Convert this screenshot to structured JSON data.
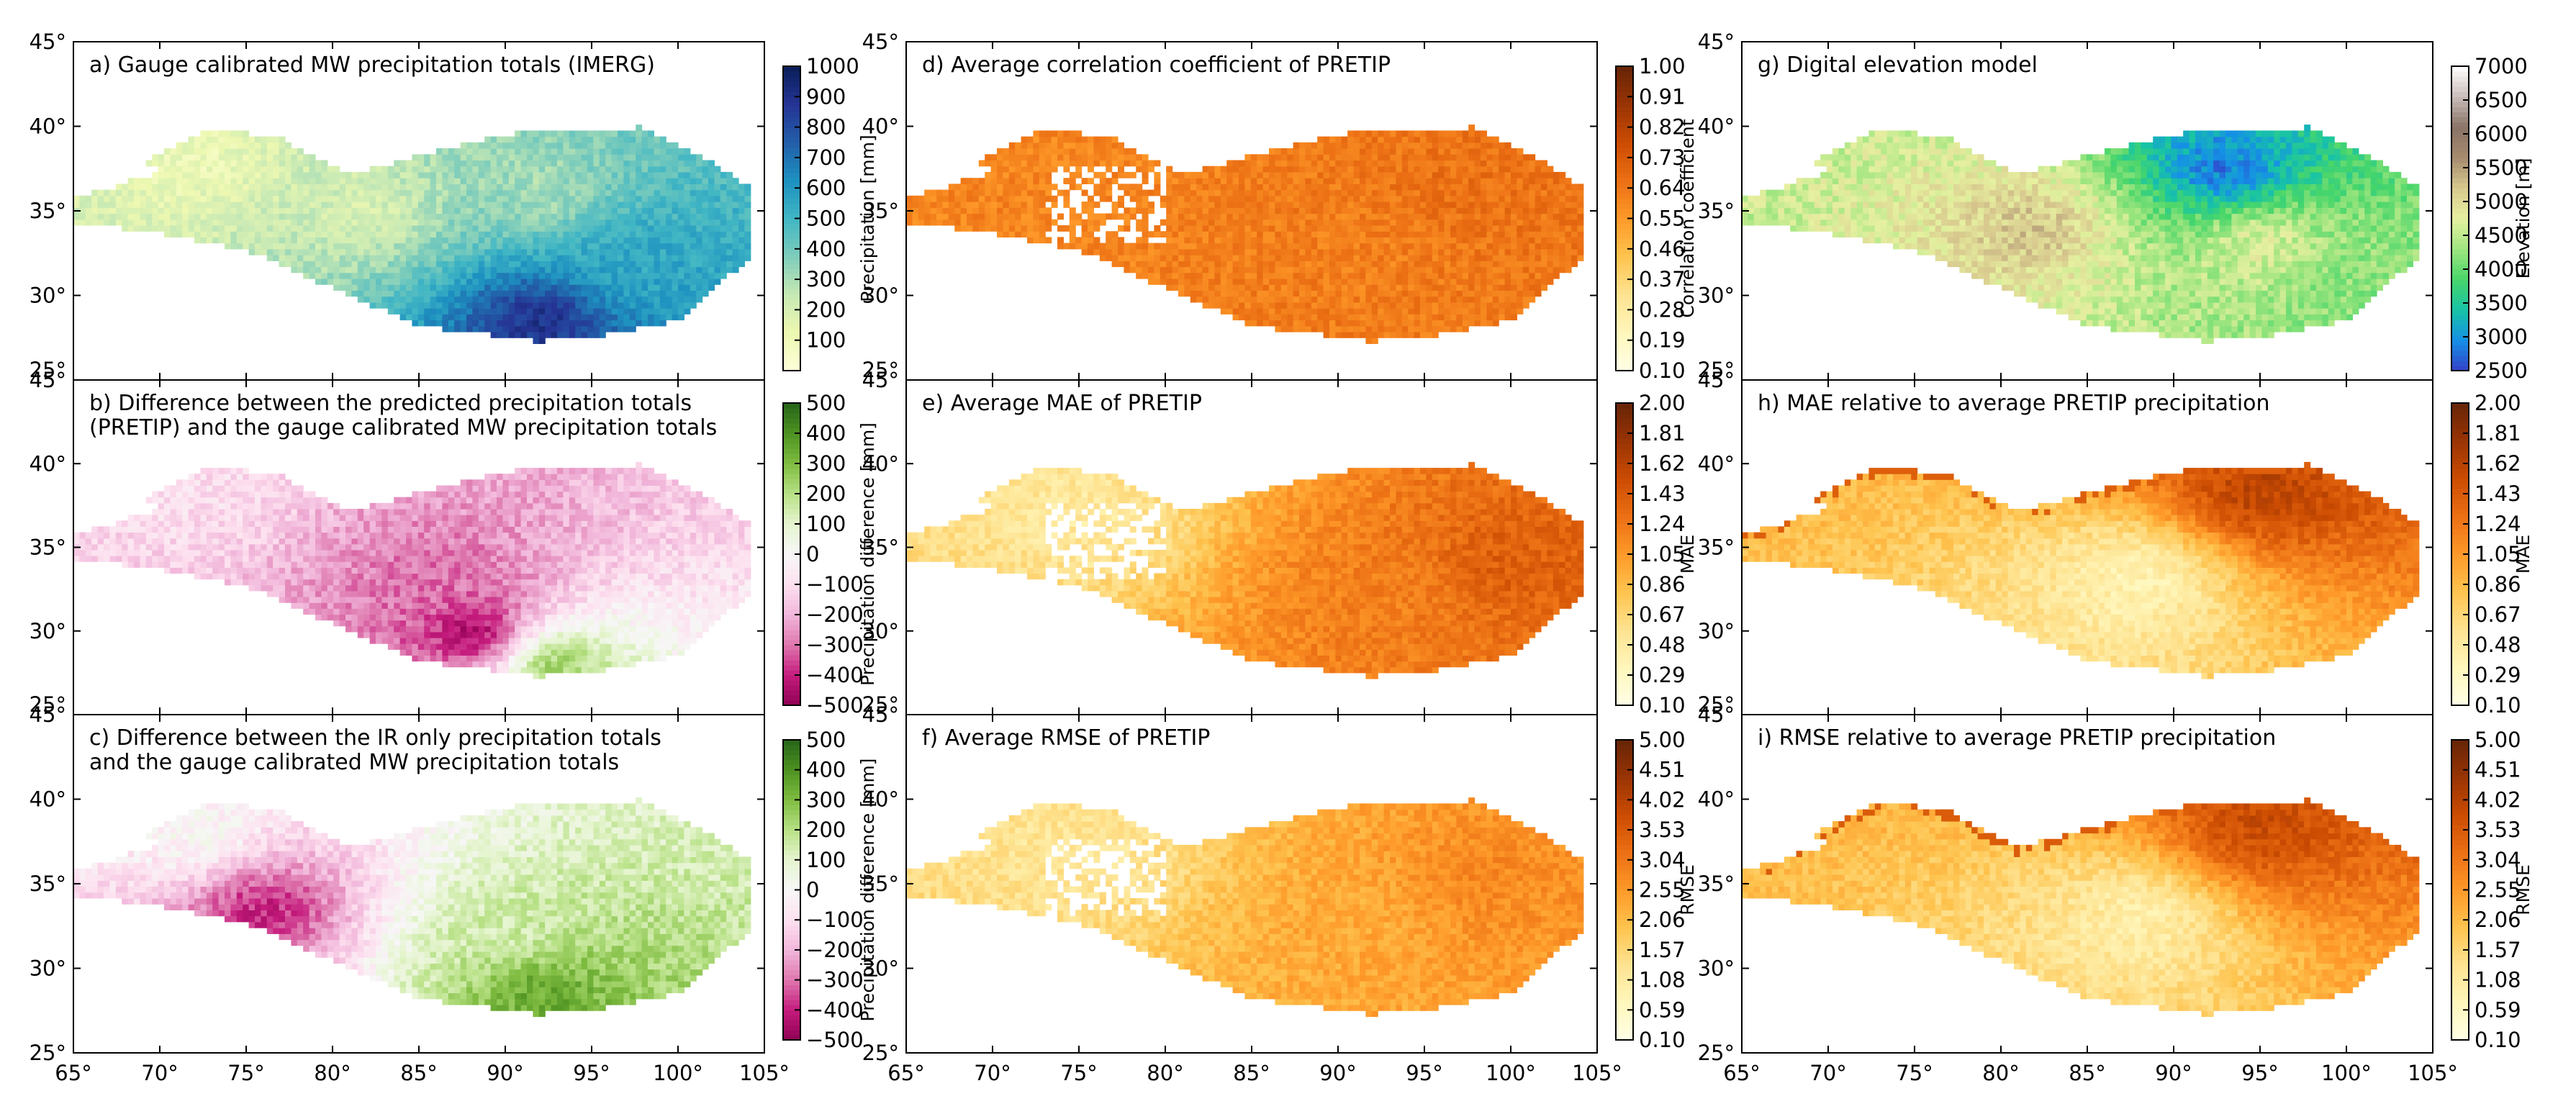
{
  "chart_data": {
    "type": "heatmap",
    "x_axis": {
      "range": [
        65,
        105
      ],
      "ticks": [
        65,
        70,
        75,
        80,
        85,
        90,
        95,
        100,
        105
      ],
      "tick_labels": [
        "65°",
        "70°",
        "75°",
        "80°",
        "85°",
        "90°",
        "95°",
        "100°",
        "105°"
      ]
    },
    "y_axis": {
      "range": [
        25,
        45
      ],
      "ticks": [
        25,
        30,
        35,
        40,
        45
      ],
      "tick_labels": [
        "25°",
        "30°",
        "35°",
        "40°",
        "45°"
      ]
    },
    "panels": [
      {
        "id": "a",
        "title": [
          "a) Gauge calibrated MW precipitation totals (IMERG)"
        ],
        "colormap": "YlGnBu",
        "colors": [
          "#ffffd9",
          "#edf8b1",
          "#c7e9b4",
          "#7fcdbb",
          "#41b6c4",
          "#1d91c0",
          "#225ea8",
          "#253494",
          "#081d58"
        ],
        "colorbar": {
          "label": "Precipitation [mm]",
          "range": [
            0,
            1000
          ],
          "ticks": [
            100,
            200,
            300,
            400,
            500,
            600,
            700,
            800,
            900,
            1000
          ],
          "tick_labels": [
            "100",
            "200",
            "300",
            "400",
            "500",
            "600",
            "700",
            "800",
            "900",
            "1000"
          ]
        },
        "regions": [
          {
            "lon": 72,
            "lat": 38.0,
            "value": 120
          },
          {
            "lon": 82,
            "lat": 35.0,
            "value": 200
          },
          {
            "lon": 92,
            "lat": 36.0,
            "value": 300
          },
          {
            "lon": 97,
            "lat": 32.0,
            "value": 550
          },
          {
            "lon": 92,
            "lat": 28.5,
            "value": 900
          }
        ]
      },
      {
        "id": "b",
        "title": [
          "b) Difference between the predicted precipitation totals",
          "(PRETIP) and the gauge calibrated MW precipitation totals"
        ],
        "colormap": "PiYG",
        "colors": [
          "#8e0152",
          "#c51b7d",
          "#de77ae",
          "#f1b6da",
          "#fde0ef",
          "#f7f7f7",
          "#e6f5d0",
          "#b8e186",
          "#7fbc41",
          "#4d9221",
          "#276419"
        ],
        "colorbar": {
          "label": "Precipitation difference [mm]",
          "range": [
            -500,
            500
          ],
          "ticks": [
            -500,
            -400,
            -300,
            -200,
            -100,
            0,
            100,
            200,
            300,
            400,
            500
          ],
          "tick_labels": [
            "−500",
            "−400",
            "−300",
            "−200",
            "−100",
            "0",
            "100",
            "200",
            "300",
            "400",
            "500"
          ]
        },
        "regions": [
          {
            "lon": 72,
            "lat": 38.0,
            "value": -100
          },
          {
            "lon": 86,
            "lat": 33.0,
            "value": -300
          },
          {
            "lon": 88,
            "lat": 30.0,
            "value": -450
          },
          {
            "lon": 93,
            "lat": 28.0,
            "value": 250
          }
        ]
      },
      {
        "id": "c",
        "title": [
          "c) Difference between the IR only precipitation totals",
          "and the gauge calibrated MW precipitation totals"
        ],
        "colormap": "PiYG",
        "colors": [
          "#8e0152",
          "#c51b7d",
          "#de77ae",
          "#f1b6da",
          "#fde0ef",
          "#f7f7f7",
          "#e6f5d0",
          "#b8e186",
          "#7fbc41",
          "#4d9221",
          "#276419"
        ],
        "colorbar": {
          "label": "Precipitation difference [mm]",
          "range": [
            -500,
            500
          ],
          "ticks": [
            -500,
            -400,
            -300,
            -200,
            -100,
            0,
            100,
            200,
            300,
            400,
            500
          ],
          "tick_labels": [
            "−500",
            "−400",
            "−300",
            "−200",
            "−100",
            "0",
            "100",
            "200",
            "300",
            "400",
            "500"
          ]
        },
        "regions": [
          {
            "lon": 72,
            "lat": 38.0,
            "value": 0
          },
          {
            "lon": 90,
            "lat": 32.0,
            "value": 150
          },
          {
            "lon": 92,
            "lat": 28.5,
            "value": 350
          },
          {
            "lon": 76,
            "lat": 33.5,
            "value": -400
          }
        ]
      },
      {
        "id": "d",
        "title": [
          "d) Average correlation coefficient of PRETIP"
        ],
        "colormap": "YlOrBr",
        "colors": [
          "#ffffe5",
          "#fff7bc",
          "#fee391",
          "#fec44f",
          "#fe9929",
          "#ec7014",
          "#cc4c02",
          "#993404",
          "#662506"
        ],
        "colorbar": {
          "label": "Correlation coefficient",
          "range": [
            0.1,
            1.0
          ],
          "ticks": [
            0.1,
            0.19,
            0.28,
            0.37,
            0.46,
            0.55,
            0.64,
            0.73,
            0.82,
            0.91,
            1.0
          ],
          "tick_labels": [
            "0.10",
            "0.19",
            "0.28",
            "0.37",
            "0.46",
            "0.55",
            "0.64",
            "0.73",
            "0.82",
            "0.91",
            "1.00"
          ]
        },
        "regions": [
          {
            "lon": 75,
            "lat": 37.0,
            "value": 0.6
          },
          {
            "lon": 92,
            "lat": 33.0,
            "value": 0.62
          },
          {
            "lon": 97,
            "lat": 36.0,
            "value": 0.66
          }
        ]
      },
      {
        "id": "e",
        "title": [
          "e) Average MAE of PRETIP"
        ],
        "colormap": "YlOrBr",
        "colors": [
          "#ffffe5",
          "#fff7bc",
          "#fee391",
          "#fec44f",
          "#fe9929",
          "#ec7014",
          "#cc4c02",
          "#993404",
          "#662506"
        ],
        "colorbar": {
          "label": "MAE",
          "range": [
            0.1,
            2.0
          ],
          "ticks": [
            0.1,
            0.29,
            0.48,
            0.67,
            0.86,
            1.05,
            1.24,
            1.43,
            1.62,
            1.81,
            2.0
          ],
          "tick_labels": [
            "0.10",
            "0.29",
            "0.48",
            "0.67",
            "0.86",
            "1.05",
            "1.24",
            "1.43",
            "1.62",
            "1.81",
            "2.00"
          ]
        },
        "regions": [
          {
            "lon": 75,
            "lat": 37.0,
            "value": 0.5
          },
          {
            "lon": 93,
            "lat": 32.0,
            "value": 1.2
          },
          {
            "lon": 100,
            "lat": 34.0,
            "value": 1.4
          }
        ]
      },
      {
        "id": "f",
        "title": [
          "f) Average RMSE of PRETIP"
        ],
        "colormap": "YlOrBr",
        "colors": [
          "#ffffe5",
          "#fff7bc",
          "#fee391",
          "#fec44f",
          "#fe9929",
          "#ec7014",
          "#cc4c02",
          "#993404",
          "#662506"
        ],
        "colorbar": {
          "label": "RMSE",
          "range": [
            0.1,
            5.0
          ],
          "ticks": [
            0.1,
            0.59,
            1.08,
            1.57,
            2.06,
            2.55,
            3.04,
            3.53,
            4.02,
            4.51,
            5.0
          ],
          "tick_labels": [
            "0.10",
            "0.59",
            "1.08",
            "1.57",
            "2.06",
            "2.55",
            "3.04",
            "3.53",
            "4.02",
            "4.51",
            "5.00"
          ]
        },
        "regions": [
          {
            "lon": 75,
            "lat": 37.0,
            "value": 1.2
          },
          {
            "lon": 92,
            "lat": 33.0,
            "value": 2.3
          },
          {
            "lon": 98,
            "lat": 35.0,
            "value": 2.8
          }
        ]
      },
      {
        "id": "g",
        "title": [
          "g) Digital elevation model"
        ],
        "colormap": "terrain",
        "colors": [
          "#3340c9",
          "#1590e6",
          "#18c3a6",
          "#48d66a",
          "#9ee57f",
          "#e6f0a0",
          "#d8c98e",
          "#a68b6e",
          "#8a7266",
          "#c9bcba",
          "#ffffff"
        ],
        "colorbar": {
          "label": "Elevation [m]",
          "range": [
            2500,
            7000
          ],
          "ticks": [
            2500,
            3000,
            3500,
            4000,
            4500,
            5000,
            5500,
            6000,
            6500,
            7000
          ],
          "tick_labels": [
            "2500",
            "3000",
            "3500",
            "4000",
            "4500",
            "5000",
            "5500",
            "6000",
            "6500",
            "7000"
          ]
        },
        "regions": [
          {
            "lon": 93,
            "lat": 37.5,
            "value": 2800
          },
          {
            "lon": 82,
            "lat": 34.0,
            "value": 5200
          },
          {
            "lon": 95,
            "lat": 33.0,
            "value": 4700
          },
          {
            "lon": 100,
            "lat": 30.0,
            "value": 4200
          }
        ]
      },
      {
        "id": "h",
        "title": [
          "h) MAE relative to average PRETIP precipitation"
        ],
        "colormap": "YlOrBr",
        "colors": [
          "#ffffe5",
          "#fff7bc",
          "#fee391",
          "#fec44f",
          "#fe9929",
          "#ec7014",
          "#cc4c02",
          "#993404",
          "#662506"
        ],
        "colorbar": {
          "label": "MAE",
          "range": [
            0.1,
            2.0
          ],
          "ticks": [
            0.1,
            0.29,
            0.48,
            0.67,
            0.86,
            1.05,
            1.24,
            1.43,
            1.62,
            1.81,
            2.0
          ],
          "tick_labels": [
            "0.10",
            "0.29",
            "0.48",
            "0.67",
            "0.86",
            "1.05",
            "1.24",
            "1.43",
            "1.62",
            "1.81",
            "2.00"
          ]
        },
        "regions": [
          {
            "lon": 88,
            "lat": 33.0,
            "value": 0.4
          },
          {
            "lon": 95,
            "lat": 38.5,
            "value": 1.6
          }
        ]
      },
      {
        "id": "i",
        "title": [
          "i) RMSE relative to average PRETIP precipitation"
        ],
        "colormap": "YlOrBr",
        "colors": [
          "#ffffe5",
          "#fff7bc",
          "#fee391",
          "#fec44f",
          "#fe9929",
          "#ec7014",
          "#cc4c02",
          "#993404",
          "#662506"
        ],
        "colorbar": {
          "label": "RMSE",
          "range": [
            0.1,
            5.0
          ],
          "ticks": [
            0.1,
            0.59,
            1.08,
            1.57,
            2.06,
            2.55,
            3.04,
            3.53,
            4.02,
            4.51,
            5.0
          ],
          "tick_labels": [
            "0.10",
            "0.59",
            "1.08",
            "1.57",
            "2.06",
            "2.55",
            "3.04",
            "3.53",
            "4.02",
            "4.51",
            "5.00"
          ]
        },
        "regions": [
          {
            "lon": 88,
            "lat": 33.0,
            "value": 1.0
          },
          {
            "lon": 95,
            "lat": 38.5,
            "value": 3.8
          }
        ]
      }
    ]
  }
}
